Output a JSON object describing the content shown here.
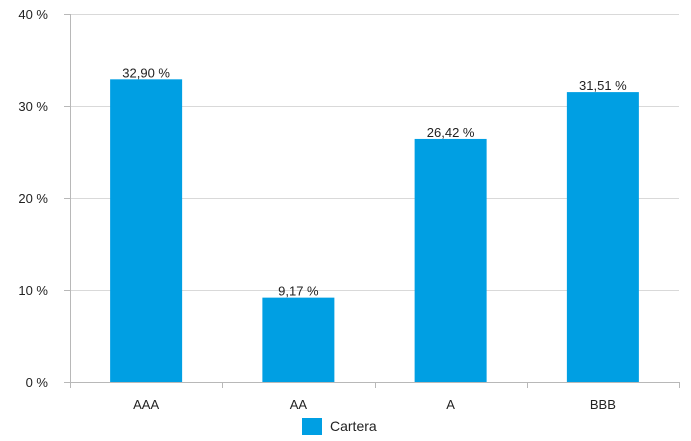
{
  "chart_data": {
    "type": "bar",
    "categories": [
      "AAA",
      "AA",
      "A",
      "BBB"
    ],
    "series": [
      {
        "name": "Cartera",
        "values": [
          32.9,
          9.17,
          26.42,
          31.51
        ],
        "data_labels": [
          "32,90 %",
          "9,17 %",
          "26,42 %",
          "31,51 %"
        ],
        "color": "#009fe3"
      }
    ],
    "yticks": [
      0,
      10,
      20,
      30,
      40
    ],
    "ytick_labels": [
      "0 %",
      "10 %",
      "20 %",
      "30 %",
      "40 %"
    ],
    "ylim": [
      0,
      40
    ],
    "grid": true,
    "legend": {
      "position": "bottom"
    }
  }
}
